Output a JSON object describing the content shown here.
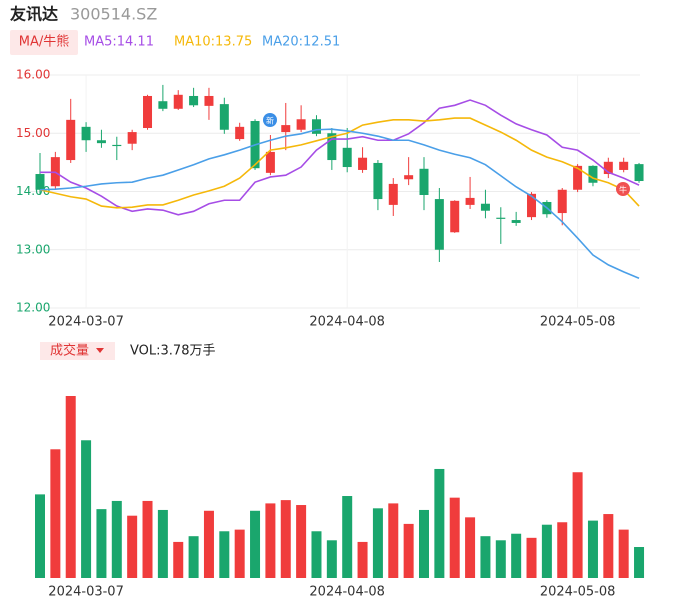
{
  "chart_data": {
    "type": "candlestick",
    "title": "友讯达",
    "subtitle": "300514.SZ",
    "indicator_button": "MA/牛熊",
    "categories": [
      null,
      null,
      null,
      "2024-03-07",
      null,
      null,
      null,
      null,
      null,
      null,
      null,
      null,
      null,
      null,
      null,
      null,
      null,
      null,
      null,
      null,
      "2024-04-08",
      null,
      null,
      null,
      null,
      null,
      null,
      null,
      null,
      null,
      null,
      null,
      null,
      null,
      null,
      "2024-05-08",
      null,
      null,
      null,
      null
    ],
    "open": [
      14.3,
      14.09,
      14.54,
      15.11,
      14.88,
      14.8,
      14.82,
      15.09,
      15.55,
      15.42,
      15.64,
      15.47,
      15.5,
      14.9,
      15.21,
      14.32,
      15.02,
      15.06,
      15.24,
      15.0,
      14.75,
      14.37,
      14.49,
      13.77,
      14.21,
      14.39,
      13.87,
      13.3,
      13.77,
      13.79,
      13.55,
      13.51,
      13.56,
      13.82,
      13.63,
      14.03,
      14.44,
      14.3,
      14.37,
      14.47
    ],
    "high": [
      14.66,
      14.68,
      15.59,
      15.19,
      15.06,
      14.94,
      15.06,
      15.66,
      15.83,
      15.74,
      15.78,
      15.78,
      15.61,
      15.18,
      15.24,
      14.97,
      15.52,
      15.48,
      15.31,
      15.09,
      15.09,
      14.76,
      14.54,
      14.23,
      14.59,
      14.59,
      14.06,
      13.85,
      14.25,
      14.03,
      13.73,
      13.65,
      13.99,
      13.85,
      14.06,
      14.47,
      14.45,
      14.58,
      14.58,
      14.49
    ],
    "low": [
      13.94,
      14.03,
      14.49,
      14.68,
      14.75,
      14.54,
      14.71,
      15.06,
      15.38,
      15.4,
      15.45,
      15.23,
      14.99,
      14.87,
      14.37,
      14.28,
      14.71,
      15.02,
      14.95,
      14.37,
      14.33,
      14.32,
      13.68,
      13.58,
      14.11,
      13.68,
      12.79,
      13.29,
      13.7,
      13.54,
      13.1,
      13.41,
      13.51,
      13.55,
      13.42,
      13.99,
      14.09,
      14.23,
      14.33,
      14.15
    ],
    "close": [
      14.03,
      14.59,
      15.23,
      14.88,
      14.83,
      14.78,
      15.02,
      15.64,
      15.42,
      15.66,
      15.48,
      15.64,
      15.06,
      15.11,
      14.4,
      14.68,
      15.14,
      15.24,
      14.99,
      14.54,
      14.42,
      14.58,
      13.87,
      14.13,
      14.28,
      13.94,
      13.0,
      13.84,
      13.89,
      13.67,
      13.53,
      13.46,
      13.96,
      13.61,
      14.03,
      14.44,
      14.15,
      14.51,
      14.51,
      14.18
    ],
    "up_color": "#f03c3c",
    "down_color": "#1aa66d",
    "ylim": [
      12,
      16
    ],
    "yticks": [
      {
        "value": 12,
        "label": "12.00"
      },
      {
        "value": 13,
        "label": "13.00"
      },
      {
        "value": 14,
        "label": "14.00"
      },
      {
        "value": 15,
        "label": "15.00"
      },
      {
        "value": 16,
        "label": "16.00"
      }
    ],
    "grid": true,
    "ma_series": [
      {
        "name": "MA5:14.11",
        "color": "#a64de6",
        "values": [
          14.33,
          14.33,
          14.16,
          14.06,
          13.92,
          13.75,
          13.66,
          13.7,
          13.68,
          13.6,
          13.66,
          13.79,
          13.85,
          13.85,
          14.16,
          14.25,
          14.28,
          14.42,
          14.71,
          14.9,
          14.9,
          14.94,
          14.88,
          14.88,
          14.99,
          15.18,
          15.43,
          15.48,
          15.57,
          15.48,
          15.31,
          15.16,
          15.06,
          14.97,
          14.76,
          14.71,
          14.54,
          14.33,
          14.23,
          14.11
        ]
      },
      {
        "name": "MA10:13.75",
        "color": "#f5b80a",
        "values": [
          14.03,
          13.97,
          13.91,
          13.87,
          13.75,
          13.72,
          13.73,
          13.77,
          13.77,
          13.85,
          13.94,
          14.01,
          14.09,
          14.23,
          14.46,
          14.71,
          14.75,
          14.8,
          14.87,
          14.94,
          15.0,
          15.14,
          15.19,
          15.23,
          15.23,
          15.21,
          15.23,
          15.26,
          15.26,
          15.14,
          15.02,
          14.88,
          14.71,
          14.59,
          14.51,
          14.4,
          14.23,
          14.15,
          14.03,
          13.75
        ]
      },
      {
        "name": "MA20:12.51",
        "color": "#4a9fe8",
        "values": [
          14.03,
          14.04,
          14.06,
          14.09,
          14.13,
          14.15,
          14.16,
          14.23,
          14.28,
          14.37,
          14.46,
          14.56,
          14.63,
          14.71,
          14.8,
          14.88,
          14.95,
          14.99,
          15.06,
          15.07,
          15.04,
          15.0,
          14.95,
          14.88,
          14.88,
          14.8,
          14.71,
          14.64,
          14.58,
          14.46,
          14.27,
          14.08,
          13.92,
          13.72,
          13.48,
          13.2,
          12.91,
          12.74,
          12.62,
          12.51
        ]
      }
    ],
    "annotations": [
      {
        "text": "新"
      },
      {
        "text": "牛"
      }
    ],
    "volume": {
      "title": "成交量",
      "label": "VOL:3.78万手",
      "values": [
        10.2,
        15.7,
        22.2,
        16.8,
        8.4,
        9.4,
        7.6,
        9.4,
        8.3,
        4.4,
        5.1,
        8.2,
        5.7,
        5.9,
        8.2,
        9.1,
        9.5,
        8.9,
        5.7,
        4.6,
        10.0,
        4.4,
        8.5,
        9.1,
        6.6,
        8.3,
        13.3,
        9.8,
        7.4,
        5.1,
        4.6,
        5.4,
        4.9,
        6.5,
        6.8,
        12.9,
        7.0,
        7.8,
        5.9,
        3.78
      ]
    }
  }
}
